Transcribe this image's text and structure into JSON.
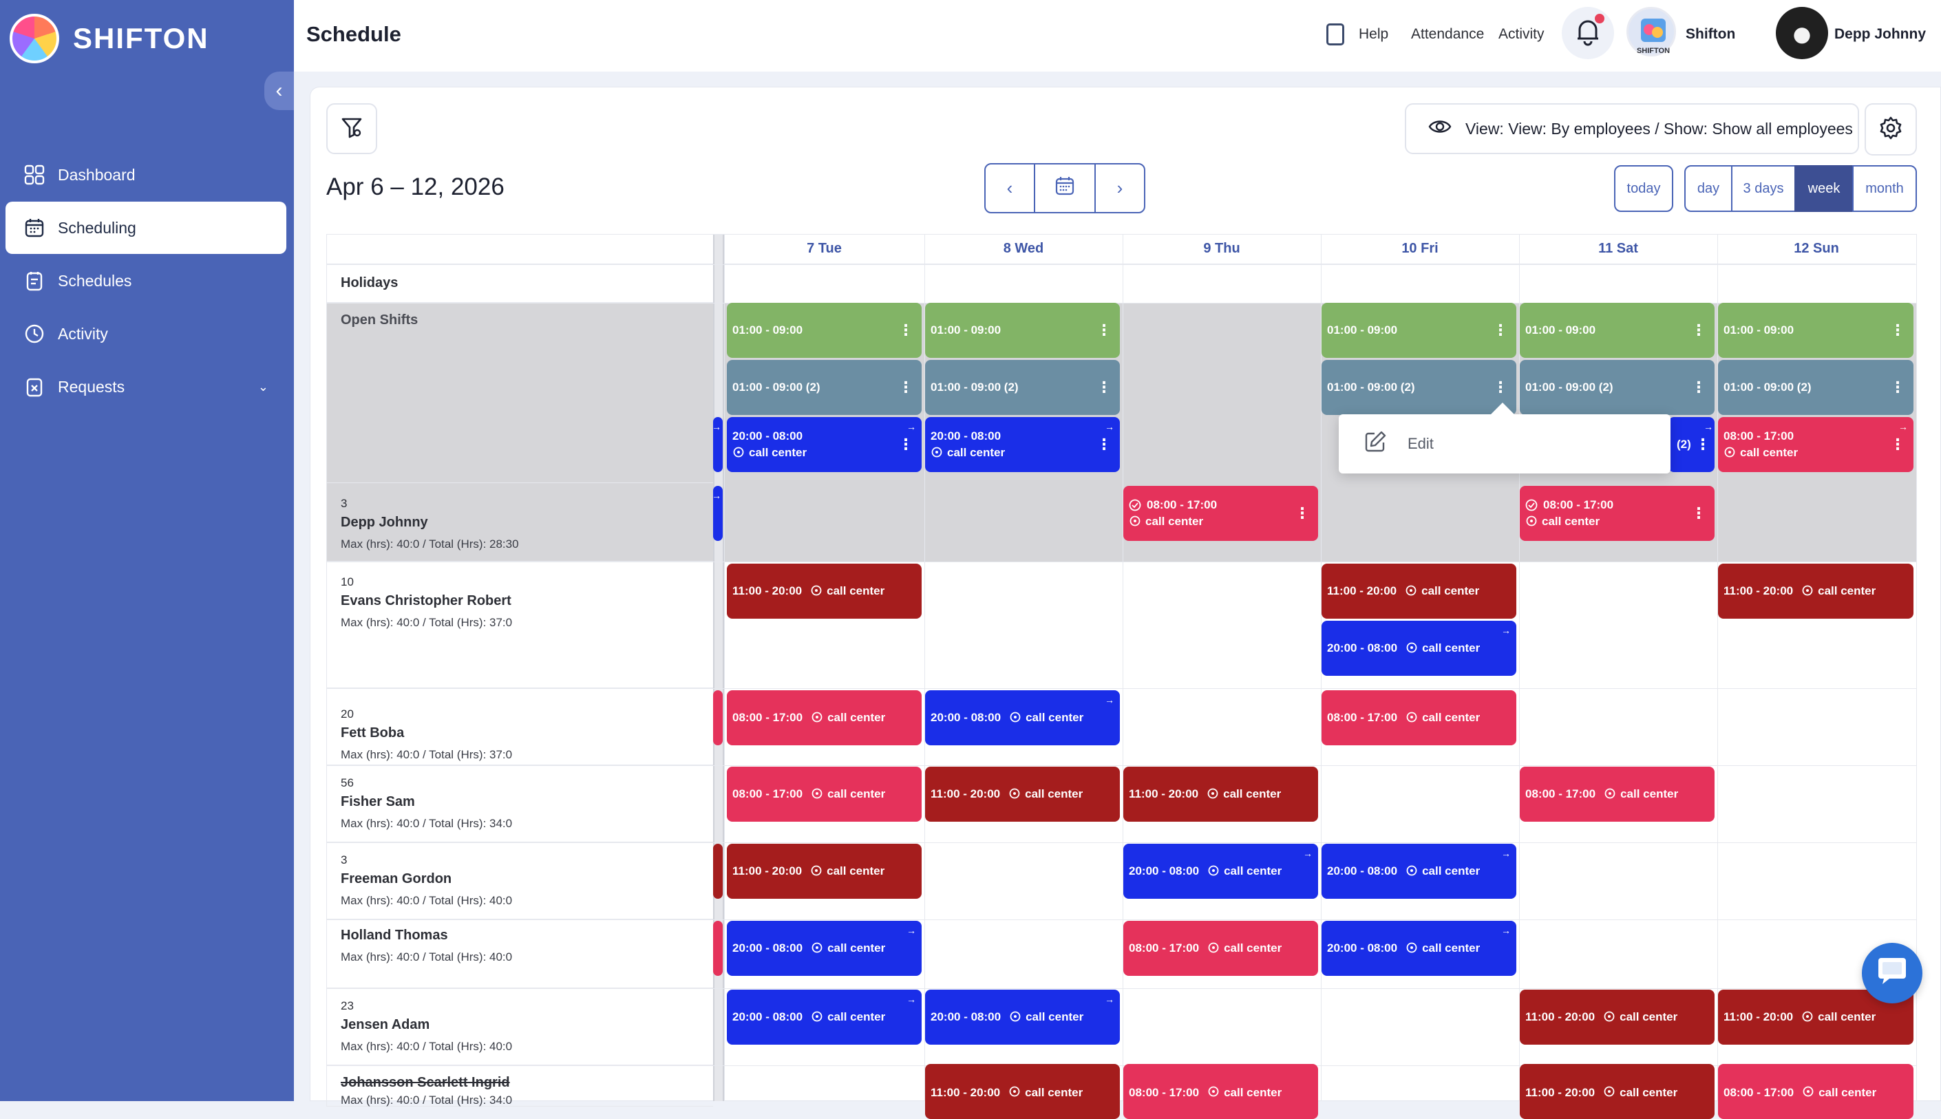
{
  "brand": {
    "name": "SHIFTON"
  },
  "sidebar": {
    "items": [
      {
        "label": "Dashboard",
        "icon": "grid-icon"
      },
      {
        "label": "Scheduling",
        "icon": "calendar-icon",
        "active": true
      },
      {
        "label": "Schedules",
        "icon": "clipboard-icon"
      },
      {
        "label": "Activity",
        "icon": "clock-icon"
      },
      {
        "label": "Requests",
        "icon": "request-icon"
      }
    ]
  },
  "header": {
    "title": "Schedule",
    "help": "Help",
    "attendance": "Attendance",
    "activity": "Activity",
    "company": "Shifton",
    "user": "Depp Johnny",
    "company_avatar_text": "SHIFTON"
  },
  "toolbar": {
    "view_label": "View: View: By employees / Show: Show all employees",
    "range_title": "Apr 6 – 12, 2026",
    "today": "today",
    "ranges": [
      "day",
      "3 days",
      "week",
      "month"
    ],
    "active_range": "week"
  },
  "grid": {
    "days": [
      "7 Tue",
      "8 Wed",
      "9 Thu",
      "10 Fri",
      "11 Sat",
      "12 Sun"
    ],
    "rows": [
      {
        "label": "Holidays"
      },
      {
        "label": "Open Shifts"
      },
      {
        "num": "3",
        "name": "Depp Johnny",
        "meta": "Max (hrs): 40:0 / Total (Hrs): 28:30"
      },
      {
        "num": "10",
        "name": "Evans Christopher Robert",
        "meta": "Max (hrs): 40:0 / Total (Hrs): 37:0"
      },
      {
        "num": "20",
        "name": "Fett Boba",
        "meta": "Max (hrs): 40:0 / Total (Hrs): 37:0"
      },
      {
        "num": "56",
        "name": "Fisher Sam",
        "meta": "Max (hrs): 40:0 / Total (Hrs): 34:0"
      },
      {
        "num": "3",
        "name": "Freeman Gordon",
        "meta": "Max (hrs): 40:0 / Total (Hrs): 40:0"
      },
      {
        "num": "",
        "name": "Holland Thomas",
        "meta": "Max (hrs): 40:0 / Total (Hrs): 40:0"
      },
      {
        "num": "23",
        "name": "Jensen Adam",
        "meta": "Max (hrs): 40:0 / Total (Hrs): 40:0"
      },
      {
        "num": "",
        "name": "Johansson Scarlett Ingrid",
        "meta": "Max (hrs): 40:0 / Total (Hrs): 34:0"
      }
    ]
  },
  "shift_text": {
    "open_green": "01:00 - 09:00",
    "open_teal": "01:00 - 09:00 (2)",
    "night": "20:00 - 08:00",
    "day": "08:00 - 17:00",
    "mid": "11:00 - 20:00",
    "location": "call center",
    "count2": "(2)"
  },
  "popup": {
    "edit": "Edit"
  },
  "colors": {
    "sidebar": "#4a64b6",
    "green": "#82b466",
    "teal": "#6b8ea3",
    "blue": "#1a2ee8",
    "pink": "#e5325b",
    "maroon": "#a51d1d"
  }
}
